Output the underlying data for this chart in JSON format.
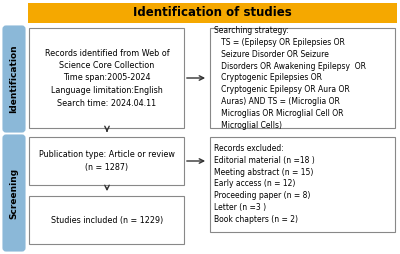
{
  "title": "Identification of studies",
  "title_bg": "#F5A800",
  "title_text_color": "#000000",
  "side_label_identification": "Identification",
  "side_label_screening": "Screening",
  "side_bg": "#8BB8D8",
  "box1_text": "Records identified from Web of\nScience Core Collection\nTime span:2005-2024\nLanguage limitation:English\nSearch time: 2024.04.11",
  "box2_text": "Searching strategy:\n   TS = (Epilepsy OR Epilepsies OR\n   Seizure Disorder OR Seizure\n   Disorders OR Awakening Epilepsy  OR\n   Cryptogenic Epilepsies OR\n   Cryptogenic Epilepsy OR Aura OR\n   Auras) AND TS = (Microglia OR\n   Microglias OR Microglial Cell OR\n   Microglial Cells)",
  "box3_text": "Publication type: Article or review\n(n = 1287)",
  "box4_text": "Records excluded:\nEditorial material (n =18 )\nMeeting abstract (n = 15)\nEarly access (n = 12)\nProceeding paper (n = 8)\nLetter (n =3 )\nBook chapters (n = 2)",
  "box5_text": "Studies included (n = 1229)",
  "box_border_color": "#888888",
  "box_bg": "#FFFFFF",
  "arrow_color": "#333333",
  "font_size": 5.8,
  "side_font_size": 6.5
}
